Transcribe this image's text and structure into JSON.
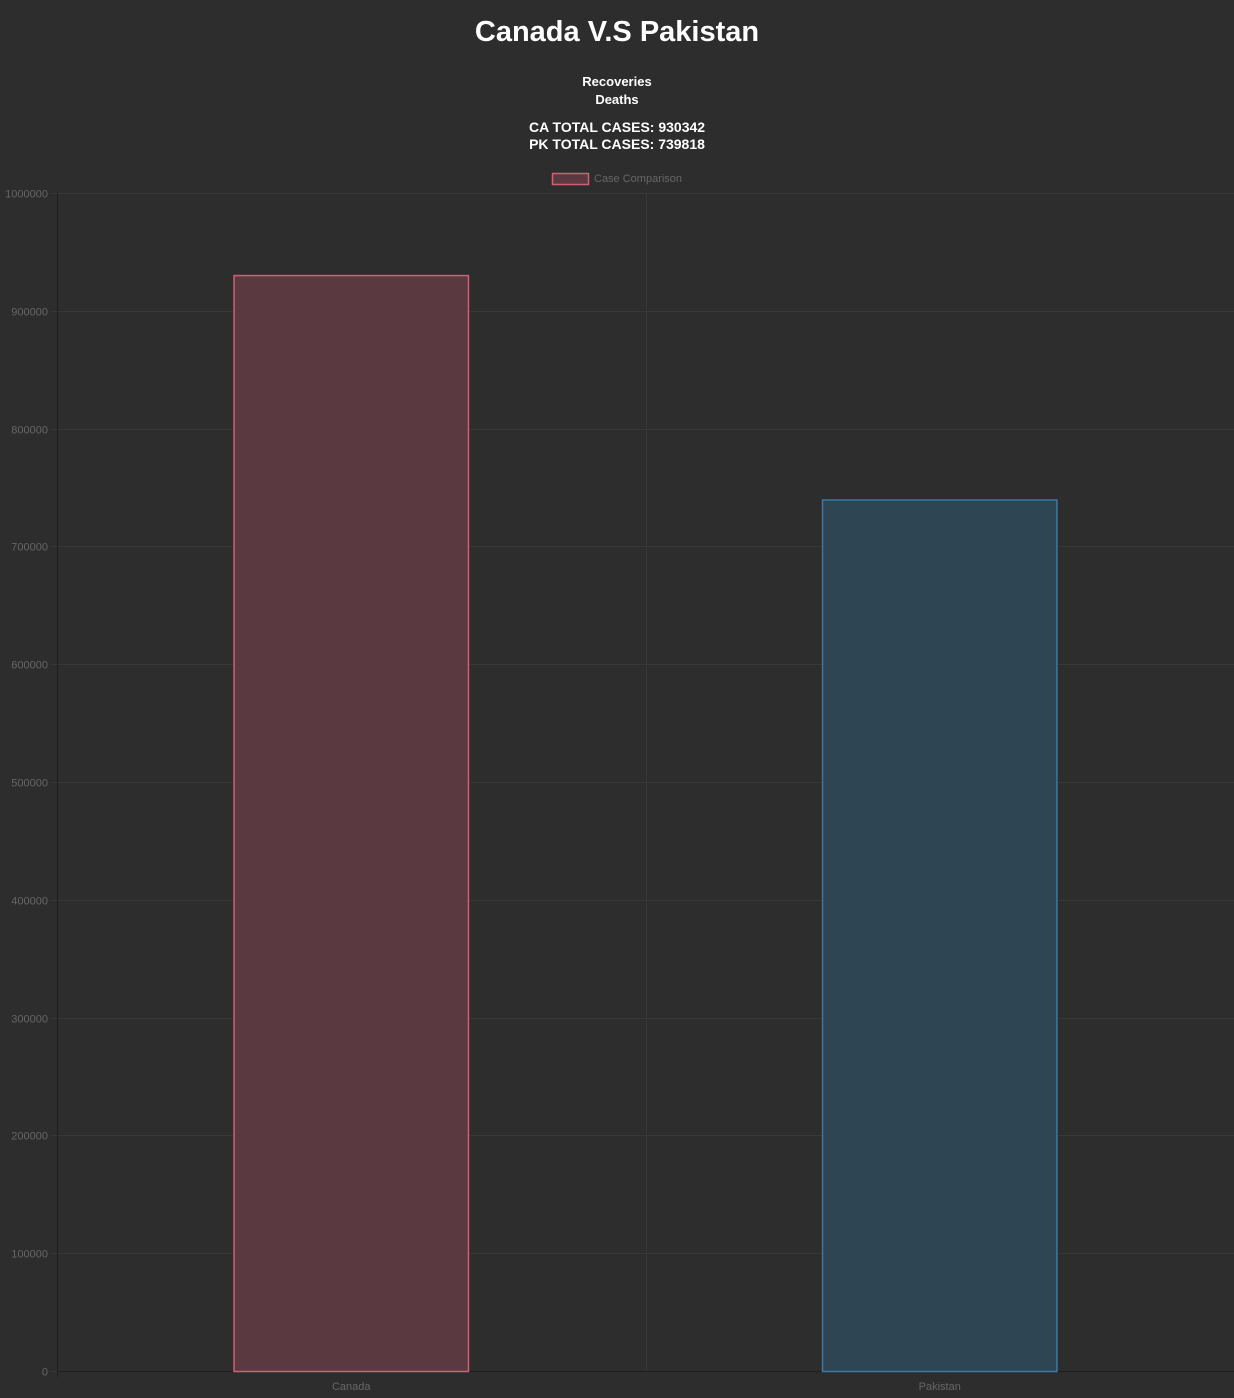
{
  "header": {
    "title": "Canada V.S Pakistan",
    "links": [
      "Recoveries",
      "Deaths"
    ],
    "totals": [
      "CA TOTAL CASES: 930342",
      "PK TOTAL CASES: 739818"
    ]
  },
  "chart_data": {
    "type": "bar",
    "categories": [
      "Canada",
      "Pakistan"
    ],
    "series": [
      {
        "name": "Case Comparison",
        "values": [
          930342,
          739818
        ]
      }
    ],
    "ylim": [
      0,
      1000000
    ],
    "yticks": [
      0,
      100000,
      200000,
      300000,
      400000,
      500000,
      600000,
      700000,
      800000,
      900000,
      1000000
    ],
    "grid": true,
    "legend": "top-center",
    "colors": {
      "fills": [
        "#5a3a40",
        "#2e4554"
      ],
      "borders": [
        "#d06070",
        "#3a79a6"
      ],
      "legend_fill": "#5a3a40",
      "legend_border": "#d06070",
      "grid": "#383838",
      "axis": "#1e1e1e"
    }
  }
}
